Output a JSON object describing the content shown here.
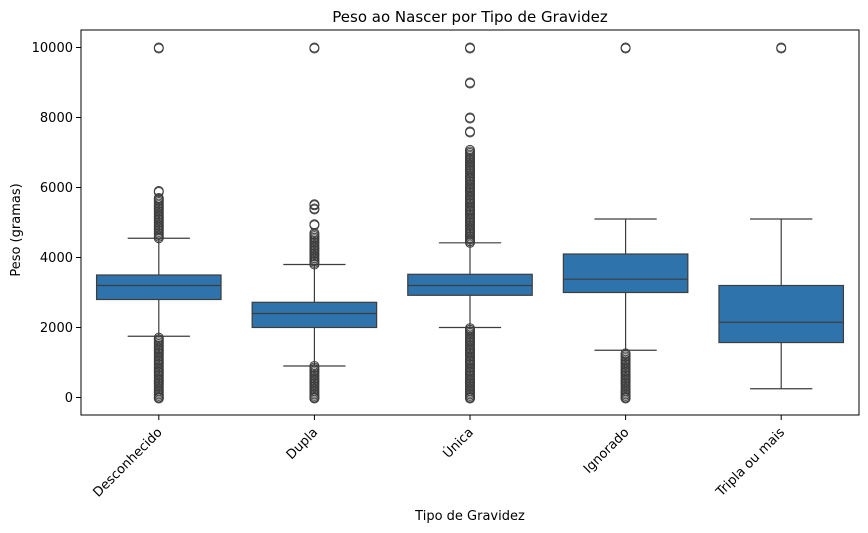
{
  "chart_data": {
    "type": "box",
    "title": "Peso ao Nascer por Tipo de Gravidez",
    "xlabel": "Tipo de Gravidez",
    "ylabel": "Peso (gramas)",
    "ylim": [
      -500,
      10500
    ],
    "yticks": [
      0,
      2000,
      4000,
      6000,
      8000,
      10000
    ],
    "grid": false,
    "box_color": "#2f73ac",
    "edge_color": "#3d3d3d",
    "categories": [
      "Desconhecido",
      "Dupla",
      "Única",
      "Ignorado",
      "Tripla ou mais"
    ],
    "boxes": [
      {
        "category": "Desconhecido",
        "whisker_low": 1750,
        "q1": 2800,
        "median": 3200,
        "q3": 3500,
        "whisker_high": 4550,
        "outlier_ranges": [
          [
            0,
            1750
          ],
          [
            4550,
            5650
          ]
        ],
        "outliers": [
          0,
          10000,
          5700,
          5900
        ]
      },
      {
        "category": "Dupla",
        "whisker_low": 900,
        "q1": 2000,
        "median": 2400,
        "q3": 2720,
        "whisker_high": 3800,
        "outlier_ranges": [
          [
            0,
            900
          ],
          [
            3800,
            4700
          ]
        ],
        "outliers": [
          0,
          10000,
          4950,
          5400,
          5520
        ]
      },
      {
        "category": "Única",
        "whisker_low": 2000,
        "q1": 2920,
        "median": 3200,
        "q3": 3520,
        "whisker_high": 4420,
        "outlier_ranges": [
          [
            0,
            2000
          ],
          [
            4420,
            7100
          ]
        ],
        "outliers": [
          0,
          10000,
          7600,
          8000,
          9000
        ]
      },
      {
        "category": "Ignorado",
        "whisker_low": 1350,
        "q1": 3000,
        "median": 3380,
        "q3": 4100,
        "whisker_high": 5100,
        "outlier_ranges": [
          [
            0,
            1300
          ]
        ],
        "outliers": [
          0,
          10000
        ]
      },
      {
        "category": "Tripla ou mais",
        "whisker_low": 250,
        "q1": 1570,
        "median": 2150,
        "q3": 3200,
        "whisker_high": 5100,
        "outlier_ranges": [],
        "outliers": [
          10000
        ]
      }
    ]
  }
}
